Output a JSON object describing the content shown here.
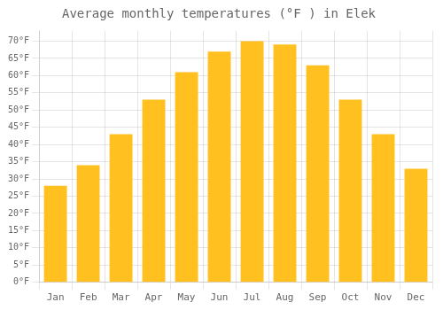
{
  "chart_data": {
    "type": "bar",
    "title": "Average monthly temperatures (°F ) in Elek",
    "categories": [
      "Jan",
      "Feb",
      "Mar",
      "Apr",
      "May",
      "Jun",
      "Jul",
      "Aug",
      "Sep",
      "Oct",
      "Nov",
      "Dec"
    ],
    "values": [
      28,
      34,
      43,
      53,
      61,
      67,
      70,
      69,
      63,
      53,
      43,
      33
    ],
    "color": "#FFC020",
    "ylim": [
      0,
      73
    ],
    "yticks": [
      {
        "value": 0,
        "label": "0°F"
      },
      {
        "value": 5,
        "label": "5°F"
      },
      {
        "value": 10,
        "label": "10°F"
      },
      {
        "value": 15,
        "label": "15°F"
      },
      {
        "value": 20,
        "label": "20°F"
      },
      {
        "value": 25,
        "label": "25°F"
      },
      {
        "value": 30,
        "label": "30°F"
      },
      {
        "value": 35,
        "label": "35°F"
      },
      {
        "value": 40,
        "label": "40°F"
      },
      {
        "value": 45,
        "label": "45°F"
      },
      {
        "value": 50,
        "label": "50°F"
      },
      {
        "value": 55,
        "label": "55°F"
      },
      {
        "value": 60,
        "label": "60°F"
      },
      {
        "value": 65,
        "label": "65°F"
      },
      {
        "value": 70,
        "label": "70°F"
      }
    ],
    "grid": true
  }
}
